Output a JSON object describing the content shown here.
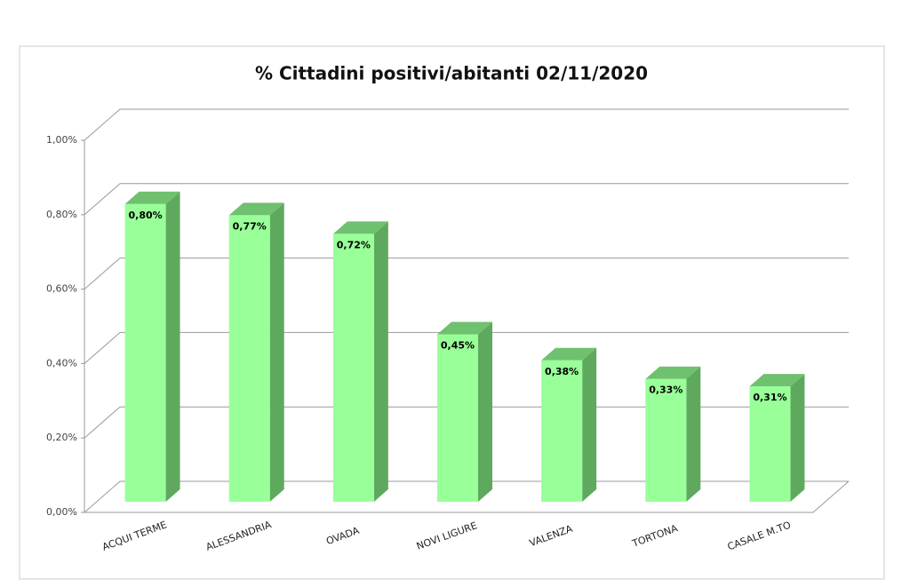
{
  "chart_data": {
    "type": "bar3d",
    "title": "% Cittadini positivi/abitanti 02/11/2020",
    "categories": [
      "ACQUI TERME",
      "ALESSANDRIA",
      "OVADA",
      "NOVI LIGURE",
      "VALENZA",
      "TORTONA",
      "CASALE M.TO"
    ],
    "values": [
      0.8,
      0.77,
      0.72,
      0.45,
      0.38,
      0.33,
      0.31
    ],
    "value_labels": [
      "0,80%",
      "0,77%",
      "0,72%",
      "0,45%",
      "0,38%",
      "0,33%",
      "0,31%"
    ],
    "color": "#99ff99",
    "ylim": [
      0,
      1
    ],
    "yticks": [
      {
        "value": 0,
        "label": "0,00%"
      },
      {
        "value": 0.2,
        "label": "0,20%"
      },
      {
        "value": 0.4,
        "label": "0,40%"
      },
      {
        "value": 0.6,
        "label": "0,60%"
      },
      {
        "value": 0.8,
        "label": "0,80%"
      },
      {
        "value": 1,
        "label": "1,00%"
      }
    ],
    "grid": true
  }
}
